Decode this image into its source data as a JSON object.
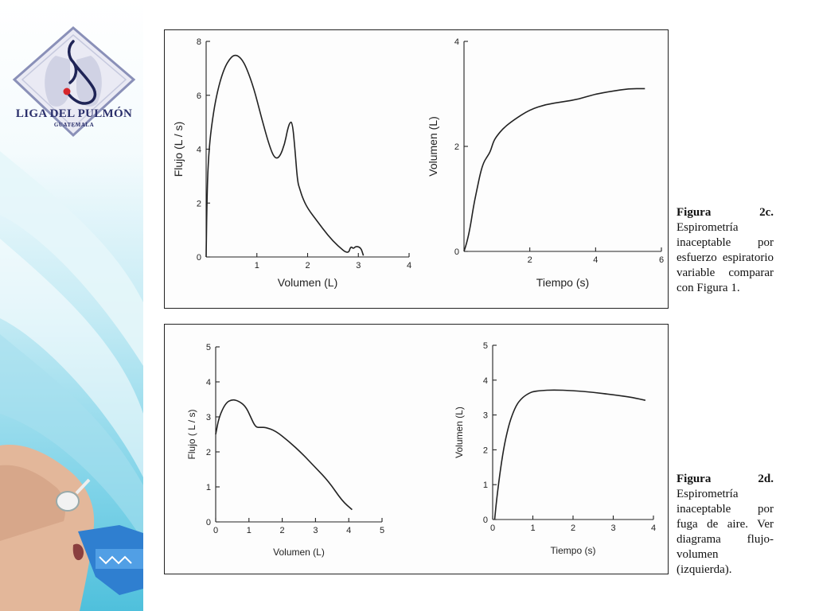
{
  "logo": {
    "title": "LIGA DEL PULMÓN",
    "subtitle": "GUATEMALA"
  },
  "figures": [
    {
      "id": "2c",
      "label": "Figura 2c.",
      "text": " Espirometría inaceptable por esfuerzo espiratorio variable comparar con Figura 1."
    },
    {
      "id": "2d",
      "label": "Figura 2d.",
      "text": " Espirometría inaceptable por fuga de aire. Ver diagrama flujo-volumen (izquierda)."
    }
  ],
  "colors": {
    "curve": "#222222",
    "axis": "#222222",
    "logo": "#2a2f6b",
    "sidebar_accent": "#2bb7d8"
  },
  "chart_data": [
    {
      "type": "line",
      "panel": "top",
      "xlabel": "Volumen (L)",
      "ylabel": "Flujo (L / s)",
      "xlim": [
        0,
        4
      ],
      "ylim": [
        0,
        8
      ],
      "xticks": [
        1,
        2,
        3,
        4
      ],
      "yticks": [
        0,
        2,
        4,
        6,
        8
      ],
      "series": [
        {
          "x": [
            0,
            0.02,
            0.05,
            0.1,
            0.2,
            0.35,
            0.5,
            0.6,
            0.7,
            0.8,
            0.95,
            1.1,
            1.25,
            1.35,
            1.45,
            1.55,
            1.6,
            1.65,
            1.7,
            1.75,
            1.8,
            1.85,
            1.9,
            2.0,
            2.2,
            2.4,
            2.6,
            2.8,
            2.85,
            2.9,
            2.95,
            3.05,
            3.1
          ],
          "y": [
            0,
            2.5,
            3.8,
            4.8,
            6.0,
            7.0,
            7.45,
            7.5,
            7.35,
            7.0,
            6.2,
            5.1,
            4.1,
            3.65,
            3.7,
            4.2,
            4.7,
            5.0,
            5.0,
            4.0,
            2.8,
            2.5,
            2.2,
            1.8,
            1.3,
            0.8,
            0.4,
            0.1,
            0.4,
            0.3,
            0.4,
            0.35,
            0.05
          ]
        }
      ]
    },
    {
      "type": "line",
      "panel": "top",
      "xlabel": "Tiempo (s)",
      "ylabel": "Volumen (L)",
      "xlim": [
        0,
        6
      ],
      "ylim": [
        0,
        4
      ],
      "xticks": [
        2,
        4,
        6
      ],
      "yticks": [
        0,
        2,
        4
      ],
      "series": [
        {
          "x": [
            0,
            0.1,
            0.2,
            0.3,
            0.4,
            0.5,
            0.6,
            0.7,
            0.8,
            0.9,
            1.0,
            1.2,
            1.5,
            2.0,
            2.5,
            3.0,
            3.5,
            4.0,
            4.5,
            5.0,
            5.5
          ],
          "y": [
            0,
            0.2,
            0.5,
            0.9,
            1.2,
            1.5,
            1.7,
            1.8,
            1.9,
            2.1,
            2.2,
            2.35,
            2.5,
            2.7,
            2.8,
            2.85,
            2.9,
            3.0,
            3.05,
            3.1,
            3.1
          ]
        }
      ]
    },
    {
      "type": "line",
      "panel": "bottom",
      "xlabel": "Volumen (L)",
      "ylabel": "Flujo ( L / s)",
      "xlim": [
        0,
        5
      ],
      "ylim": [
        0,
        5
      ],
      "xticks": [
        0,
        1,
        2,
        3,
        4,
        5
      ],
      "yticks": [
        0,
        1,
        2,
        3,
        4,
        5
      ],
      "series": [
        {
          "x": [
            0,
            0.1,
            0.3,
            0.5,
            0.7,
            0.9,
            1.05,
            1.2,
            1.35,
            1.5,
            1.8,
            2.2,
            2.6,
            3.0,
            3.4,
            3.8,
            4.1
          ],
          "y": [
            2.5,
            3.0,
            3.4,
            3.5,
            3.45,
            3.3,
            3.0,
            2.7,
            2.7,
            2.7,
            2.6,
            2.3,
            1.95,
            1.55,
            1.15,
            0.6,
            0.35
          ]
        }
      ]
    },
    {
      "type": "line",
      "panel": "bottom",
      "xlabel": "Tiempo (s)",
      "ylabel": "Volumen (L)",
      "xlim": [
        0,
        4
      ],
      "ylim": [
        0,
        5
      ],
      "xticks": [
        0,
        1,
        2,
        3,
        4
      ],
      "yticks": [
        0,
        1,
        2,
        3,
        4,
        5
      ],
      "series": [
        {
          "x": [
            0.05,
            0.1,
            0.2,
            0.3,
            0.4,
            0.5,
            0.6,
            0.7,
            0.8,
            0.9,
            1.0,
            1.2,
            1.5,
            2.0,
            2.5,
            3.0,
            3.5,
            3.8
          ],
          "y": [
            0,
            0.6,
            1.5,
            2.2,
            2.7,
            3.05,
            3.3,
            3.45,
            3.55,
            3.62,
            3.67,
            3.7,
            3.72,
            3.7,
            3.65,
            3.58,
            3.5,
            3.42
          ]
        }
      ]
    }
  ]
}
